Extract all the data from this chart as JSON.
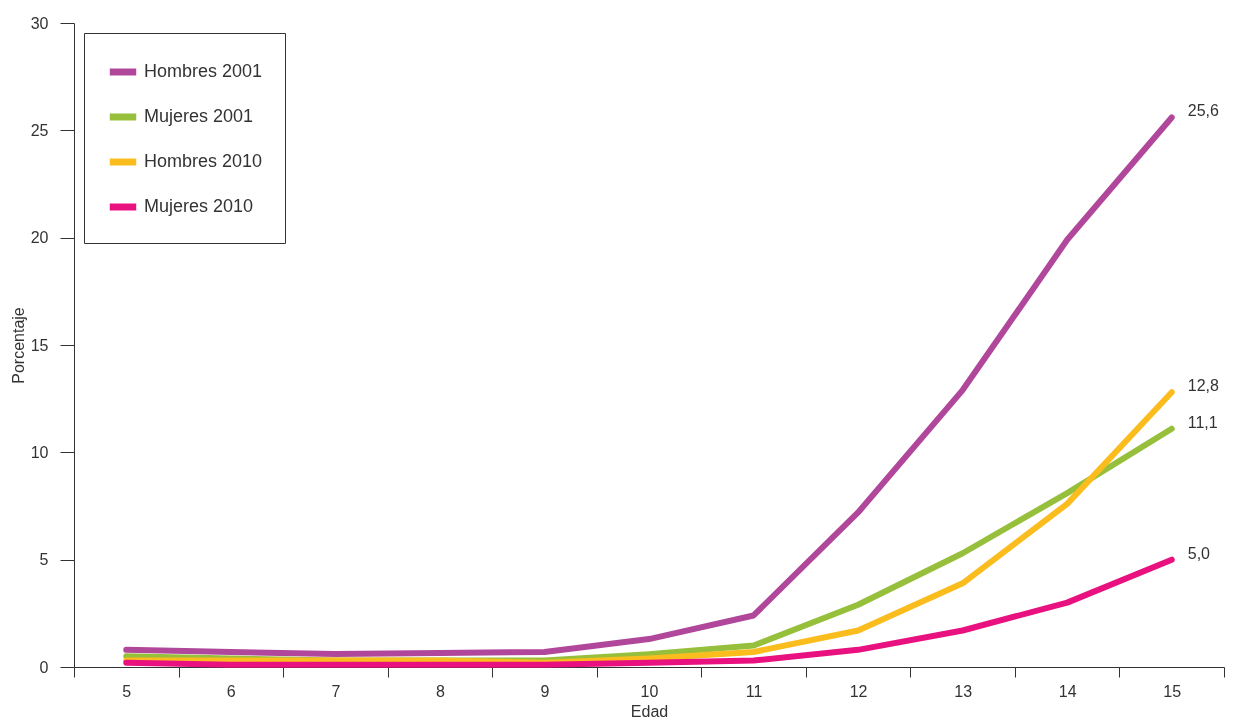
{
  "chart_data": {
    "type": "line",
    "xlabel": "Edad",
    "ylabel": "Porcentaje",
    "categories": [
      "5",
      "6",
      "7",
      "8",
      "9",
      "10",
      "11",
      "12",
      "13",
      "14",
      "15"
    ],
    "series": [
      {
        "name": "Hombres 2001",
        "color": "#b0479b",
        "values": [
          0.8,
          0.7,
          0.6,
          0.65,
          0.7,
          1.3,
          2.4,
          7.2,
          12.9,
          19.9,
          25.6
        ],
        "value_labels": [
          null,
          null,
          null,
          null,
          null,
          null,
          null,
          null,
          null,
          null,
          "25,6"
        ]
      },
      {
        "name": "Mujeres 2001",
        "color": "#96bf3c",
        "values": [
          0.5,
          0.4,
          0.3,
          0.3,
          0.3,
          0.6,
          1.0,
          2.9,
          5.3,
          8.1,
          11.1
        ],
        "value_labels": [
          null,
          null,
          null,
          null,
          null,
          null,
          null,
          null,
          null,
          null,
          "11,1"
        ]
      },
      {
        "name": "Hombres 2010",
        "color": "#fbbc1e",
        "values": [
          0.3,
          0.3,
          0.3,
          0.3,
          0.2,
          0.4,
          0.7,
          1.7,
          3.9,
          7.6,
          12.8
        ],
        "value_labels": [
          null,
          null,
          null,
          null,
          null,
          null,
          null,
          null,
          null,
          null,
          "12,8"
        ]
      },
      {
        "name": "Mujeres 2010",
        "color": "#e8117f",
        "values": [
          0.2,
          0.1,
          0.1,
          0.1,
          0.1,
          0.2,
          0.3,
          0.8,
          1.7,
          3.0,
          5.0
        ],
        "value_labels": [
          null,
          null,
          null,
          null,
          null,
          null,
          null,
          null,
          null,
          null,
          "5,0"
        ]
      }
    ],
    "ylim": [
      0,
      30
    ],
    "yticks": [
      0,
      5,
      10,
      15,
      20,
      25,
      30
    ],
    "grid": false,
    "legend": "top left",
    "marker": "none",
    "line_style": "solid"
  }
}
